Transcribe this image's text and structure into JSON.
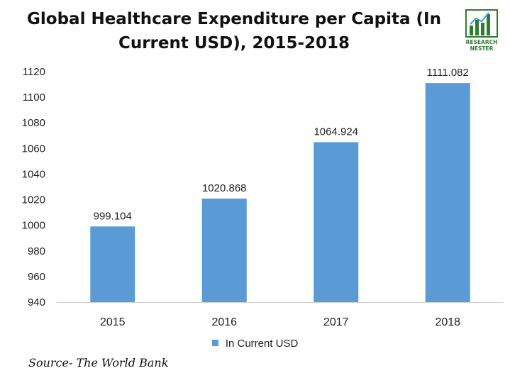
{
  "title": "Global Healthcare Expenditure per Capita (In Current USD), 2015-2018",
  "logo": {
    "icon": "research-nester-logo-icon",
    "line1": "RESEARCH",
    "line2": "NESTER",
    "color": "#2e7d32"
  },
  "chart_data": {
    "type": "bar",
    "categories": [
      "2015",
      "2016",
      "2017",
      "2018"
    ],
    "series": [
      {
        "name": "In Current USD",
        "values": [
          999.104,
          1020.868,
          1064.924,
          1111.082
        ],
        "labels": [
          "999.104",
          "1020.868",
          "1064.924",
          "1111.082"
        ],
        "color": "#5b9bd5"
      }
    ],
    "ylim": [
      940,
      1120
    ],
    "yticks": [
      "940",
      "960",
      "980",
      "1000",
      "1020",
      "1040",
      "1060",
      "1080",
      "1100",
      "1120"
    ],
    "grid": false,
    "legend": "bottom"
  },
  "source": "Source- The World Bank"
}
